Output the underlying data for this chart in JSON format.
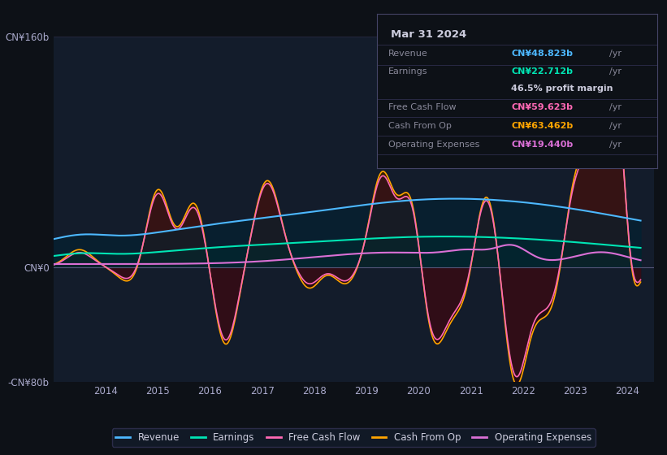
{
  "bg_color": "#0d1117",
  "plot_bg": "#131c2b",
  "ylim": [
    -80,
    160
  ],
  "ytick_labels": [
    "-CN¥80b",
    "CN¥0",
    "CN¥160b"
  ],
  "ytick_vals": [
    -80,
    0,
    160
  ],
  "xlabel_years": [
    2014,
    2015,
    2016,
    2017,
    2018,
    2019,
    2020,
    2021,
    2022,
    2023,
    2024
  ],
  "info_box": {
    "date": "Mar 31 2024",
    "revenue_label": "Revenue",
    "revenue_value": "CN¥48.823b",
    "revenue_color": "#4db8ff",
    "earnings_label": "Earnings",
    "earnings_value": "CN¥22.712b",
    "earnings_color": "#00e5b4",
    "margin_text": "46.5% profit margin",
    "fcf_label": "Free Cash Flow",
    "fcf_value": "CN¥59.623b",
    "fcf_color": "#ff69b4",
    "cashfromop_label": "Cash From Op",
    "cashfromop_value": "CN¥63.462b",
    "cashfromop_color": "#ffa500",
    "opex_label": "Operating Expenses",
    "opex_value": "CN¥19.440b",
    "opex_color": "#da70d6"
  },
  "legend": [
    {
      "label": "Revenue",
      "color": "#4db8ff"
    },
    {
      "label": "Earnings",
      "color": "#00e5b4"
    },
    {
      "label": "Free Cash Flow",
      "color": "#ff69b4"
    },
    {
      "label": "Cash From Op",
      "color": "#ffa500"
    },
    {
      "label": "Operating Expenses",
      "color": "#da70d6"
    }
  ],
  "revenue_color": "#4db8ff",
  "earnings_color": "#00e5b4",
  "fcf_color": "#ff69b4",
  "cashfromop_color": "#ffa500",
  "opex_color": "#da70d6"
}
